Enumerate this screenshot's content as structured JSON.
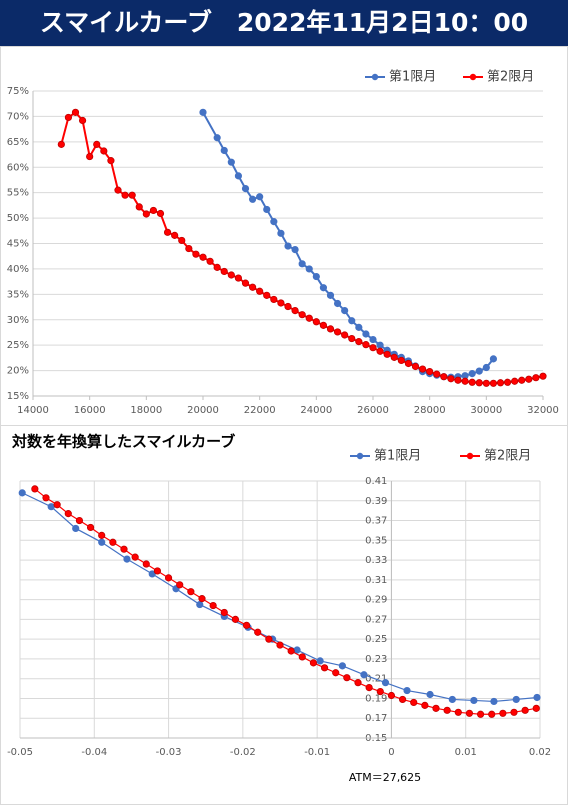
{
  "header": {
    "title": "スマイルカーブ　2022年11月2日10：00"
  },
  "chart_data": [
    {
      "type": "line",
      "grid": "y",
      "legend": "top-right",
      "xlim": [
        14000,
        32000
      ],
      "xticks": [
        14000,
        16000,
        18000,
        20000,
        22000,
        24000,
        26000,
        28000,
        30000,
        32000
      ],
      "ylim": [
        15,
        75
      ],
      "yticks": [
        {
          "value": 15,
          "label": "15%"
        },
        {
          "value": 20,
          "label": "20%"
        },
        {
          "value": 25,
          "label": "25%"
        },
        {
          "value": 30,
          "label": "30%"
        },
        {
          "value": 35,
          "label": "35%"
        },
        {
          "value": 40,
          "label": "40%"
        },
        {
          "value": 45,
          "label": "45%"
        },
        {
          "value": 50,
          "label": "50%"
        },
        {
          "value": 55,
          "label": "55%"
        },
        {
          "value": 60,
          "label": "60%"
        },
        {
          "value": 65,
          "label": "65%"
        },
        {
          "value": 70,
          "label": "70%"
        },
        {
          "value": 75,
          "label": "75%"
        }
      ],
      "series": [
        {
          "name": "第1限月",
          "color": "#4472c4",
          "x": [
            20000,
            20500,
            20750,
            21000,
            21250,
            21500,
            21750,
            22000,
            22250,
            22500,
            22750,
            23000,
            23250,
            23500,
            23750,
            24000,
            24250,
            24500,
            24750,
            25000,
            25250,
            25500,
            25750,
            26000,
            26250,
            26500,
            26750,
            27000,
            27250,
            27500,
            27750,
            28000,
            28250,
            28500,
            28750,
            29000,
            29250,
            29500,
            29750,
            30000,
            30250
          ],
          "values": [
            70.8,
            65.8,
            63.3,
            61,
            58.3,
            55.8,
            53.7,
            54.2,
            51.7,
            49.3,
            47,
            44.5,
            43.8,
            41,
            40,
            38.5,
            36.3,
            34.8,
            33.2,
            31.8,
            29.8,
            28.5,
            27.2,
            26.1,
            25,
            24,
            23.2,
            22.6,
            21.9,
            20.9,
            19.8,
            19.4,
            19.1,
            18.8,
            18.7,
            18.8,
            19,
            19.4,
            19.9,
            20.6,
            22.3
          ]
        },
        {
          "name": "第2限月",
          "color": "#ff0000",
          "x": [
            15000,
            15250,
            15500,
            15750,
            16000,
            16250,
            16500,
            16750,
            17000,
            17250,
            17500,
            17750,
            18000,
            18250,
            18500,
            18750,
            19000,
            19250,
            19500,
            19750,
            20000,
            20250,
            20500,
            20750,
            21000,
            21250,
            21500,
            21750,
            22000,
            22250,
            22500,
            22750,
            23000,
            23250,
            23500,
            23750,
            24000,
            24250,
            24500,
            24750,
            25000,
            25250,
            25500,
            25750,
            26000,
            26250,
            26500,
            26750,
            27000,
            27250,
            27500,
            27750,
            28000,
            28250,
            28500,
            28750,
            29000,
            29250,
            29500,
            29750,
            30000,
            30250,
            30500,
            30750,
            31000,
            31250,
            31500,
            31750,
            32000
          ],
          "values": [
            64.5,
            69.8,
            70.8,
            69.2,
            62.1,
            64.5,
            63.2,
            61.3,
            55.5,
            54.5,
            54.5,
            52.2,
            50.8,
            51.5,
            50.9,
            47.2,
            46.6,
            45.6,
            44,
            42.9,
            42.3,
            41.5,
            40.3,
            39.5,
            38.8,
            38.2,
            37.2,
            36.4,
            35.6,
            34.8,
            34,
            33.3,
            32.6,
            31.8,
            31,
            30.3,
            29.6,
            28.9,
            28.2,
            27.6,
            27,
            26.3,
            25.7,
            25.1,
            24.5,
            23.8,
            23.2,
            22.6,
            22,
            21.4,
            20.8,
            20.3,
            19.8,
            19.3,
            18.8,
            18.4,
            18.1,
            17.9,
            17.7,
            17.6,
            17.5,
            17.5,
            17.6,
            17.7,
            17.9,
            18.1,
            18.3,
            18.6,
            18.9
          ]
        }
      ]
    },
    {
      "type": "line",
      "title": "対数を年換算したスマイルカーブ",
      "grid": "both",
      "legend": "top-right",
      "y_axis_crosses_x": 0,
      "xlim": [
        -0.05,
        0.02
      ],
      "xticks": [
        -0.05,
        -0.04,
        -0.03,
        -0.02,
        -0.01,
        0,
        0.01,
        0.02
      ],
      "ylim": [
        0.15,
        0.41
      ],
      "yticks": [
        0.15,
        0.17,
        0.19,
        0.21,
        0.23,
        0.25,
        0.27,
        0.29,
        0.31,
        0.33,
        0.35,
        0.37,
        0.39,
        0.41
      ],
      "annotation": "ATM＝27,625",
      "series": [
        {
          "name": "第1限月",
          "color": "#4472c4",
          "x": [
            -0.0497,
            -0.0458,
            -0.0425,
            -0.039,
            -0.0356,
            -0.0322,
            -0.029,
            -0.0258,
            -0.0225,
            -0.0193,
            -0.016,
            -0.0127,
            -0.0096,
            -0.0066,
            -0.0037,
            -0.0008,
            0.0021,
            0.0052,
            0.0082,
            0.0111,
            0.0138,
            0.0168,
            0.0196
          ],
          "values": [
            0.398,
            0.384,
            0.362,
            0.348,
            0.331,
            0.316,
            0.301,
            0.285,
            0.273,
            0.262,
            0.25,
            0.239,
            0.228,
            0.223,
            0.214,
            0.206,
            0.198,
            0.194,
            0.189,
            0.188,
            0.187,
            0.189,
            0.191
          ]
        },
        {
          "name": "第2限月",
          "color": "#ff0000",
          "x": [
            -0.048,
            -0.0465,
            -0.045,
            -0.0435,
            -0.042,
            -0.0405,
            -0.039,
            -0.0375,
            -0.036,
            -0.0345,
            -0.033,
            -0.0315,
            -0.03,
            -0.0285,
            -0.027,
            -0.0255,
            -0.024,
            -0.0225,
            -0.021,
            -0.0195,
            -0.018,
            -0.0165,
            -0.015,
            -0.0135,
            -0.012,
            -0.0105,
            -0.009,
            -0.0075,
            -0.006,
            -0.0045,
            -0.003,
            -0.0015,
            0,
            0.0015,
            0.003,
            0.0045,
            0.006,
            0.0075,
            0.009,
            0.0105,
            0.012,
            0.0135,
            0.015,
            0.0165,
            0.018,
            0.0195
          ],
          "values": [
            0.402,
            0.393,
            0.386,
            0.377,
            0.37,
            0.363,
            0.355,
            0.348,
            0.341,
            0.333,
            0.326,
            0.319,
            0.312,
            0.305,
            0.298,
            0.291,
            0.284,
            0.277,
            0.27,
            0.264,
            0.257,
            0.25,
            0.244,
            0.238,
            0.232,
            0.226,
            0.221,
            0.216,
            0.211,
            0.206,
            0.201,
            0.197,
            0.193,
            0.189,
            0.186,
            0.183,
            0.18,
            0.178,
            0.176,
            0.175,
            0.174,
            0.174,
            0.175,
            0.176,
            0.178,
            0.18
          ]
        }
      ]
    }
  ]
}
